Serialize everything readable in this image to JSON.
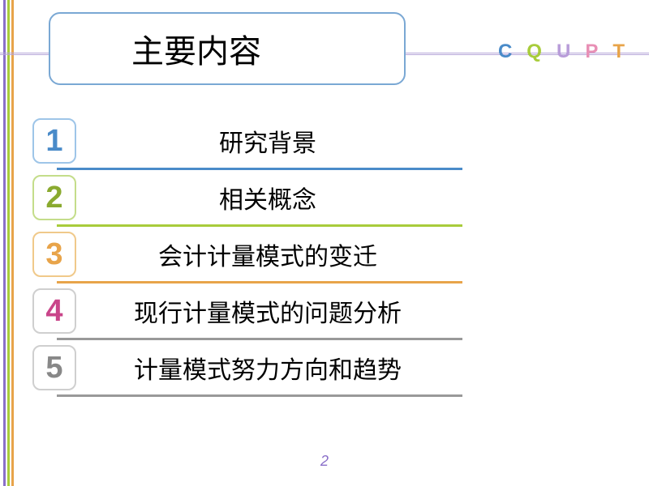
{
  "colors": {
    "stripe1": "#8a6fc9",
    "stripe2": "#a8cc3b",
    "stripe3": "#e8a44a",
    "topline": "#b6a6d9",
    "titleBorder": "#7aa8d4"
  },
  "title": "主要内容",
  "cqupt": [
    {
      "letter": "C",
      "color": "#4a8bc9"
    },
    {
      "letter": "Q",
      "color": "#a8cc3b"
    },
    {
      "letter": "U",
      "color": "#b89cd9"
    },
    {
      "letter": "P",
      "color": "#e88fb5"
    },
    {
      "letter": "T",
      "color": "#e8a44a"
    }
  ],
  "items": [
    {
      "num": "1",
      "text": "研究背景",
      "numColor": "#4a8bc9",
      "boxBorder": "#9ec5e8",
      "lineColor": "#4a8bc9"
    },
    {
      "num": "2",
      "text": "相关概念",
      "numColor": "#8aaa2f",
      "boxBorder": "#c4dd8a",
      "lineColor": "#a8cc3b"
    },
    {
      "num": "3",
      "text": "会计计量模式的变迁",
      "numColor": "#e8a44a",
      "boxBorder": "#f0c98a",
      "lineColor": "#e8a44a"
    },
    {
      "num": "4",
      "text": "现行计量模式的问题分析",
      "numColor": "#c9458a",
      "boxBorder": "#cfcfcf",
      "lineColor": "#999999"
    },
    {
      "num": "5",
      "text": "计量模式努力方向和趋势",
      "numColor": "#888888",
      "boxBorder": "#cfcfcf",
      "lineColor": "#999999"
    }
  ],
  "pageNumber": "2"
}
